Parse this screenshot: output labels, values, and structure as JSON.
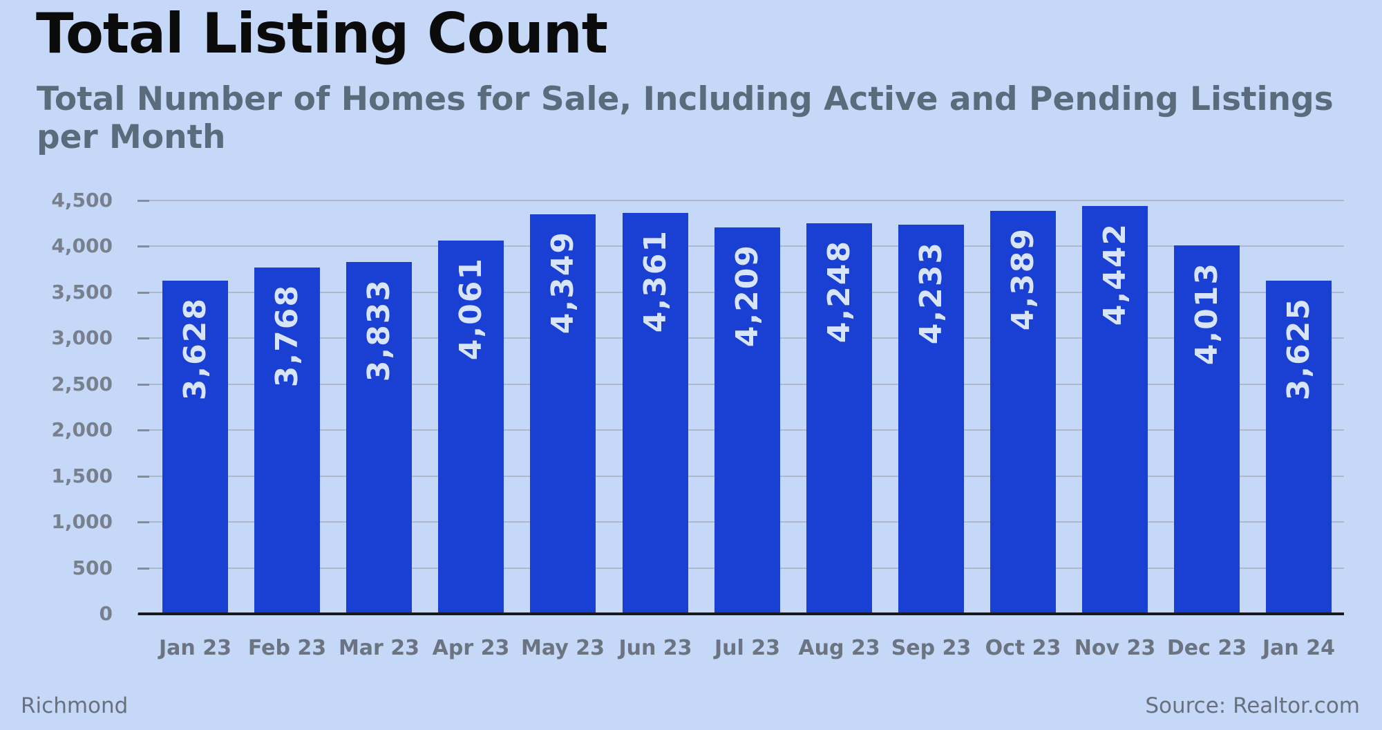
{
  "chart_data": {
    "type": "bar",
    "title": "Total Listing Count",
    "subtitle": "Total Number of Homes for Sale, Including Active and Pending Listings per Month",
    "region": "Richmond",
    "source": "Source: Realtor.com",
    "categories": [
      "Jan 23",
      "Feb 23",
      "Mar 23",
      "Apr 23",
      "May 23",
      "Jun 23",
      "Jul 23",
      "Aug 23",
      "Sep 23",
      "Oct 23",
      "Nov 23",
      "Dec 23",
      "Jan 24"
    ],
    "values": [
      3628,
      3768,
      3833,
      4061,
      4349,
      4361,
      4209,
      4248,
      4233,
      4389,
      4442,
      4013,
      3625
    ],
    "value_labels": [
      "3,628",
      "3,768",
      "3,833",
      "4,061",
      "4,349",
      "4,361",
      "4,209",
      "4,248",
      "4,233",
      "4,389",
      "4,442",
      "4,013",
      "3,625"
    ],
    "xlabel": "",
    "ylabel": "",
    "ylim": [
      0,
      4500
    ],
    "y_tick_step": 500,
    "y_tick_values": [
      0,
      500,
      1000,
      1500,
      2000,
      2500,
      3000,
      3500,
      4000,
      4500
    ],
    "y_tick_labels": [
      "0",
      "500",
      "1,000",
      "1,500",
      "2,000",
      "2,500",
      "3,000",
      "3,500",
      "4,000",
      "4,500"
    ],
    "grid": true,
    "legend": "none",
    "bar_value_label_rotation": "vertical-bottom-to-top",
    "colors": {
      "background": "#c5d8f7",
      "bar": "#1a3fd3",
      "bar_label": "#d8e4f8",
      "grid": "#b0b9c8",
      "axis_line": "#17191d",
      "tick_label": "#78808d",
      "x_tick_label": "#6b7480",
      "title": "#0b0b0c",
      "subtitle": "#5a6c7b",
      "footer": "#68707e"
    }
  }
}
